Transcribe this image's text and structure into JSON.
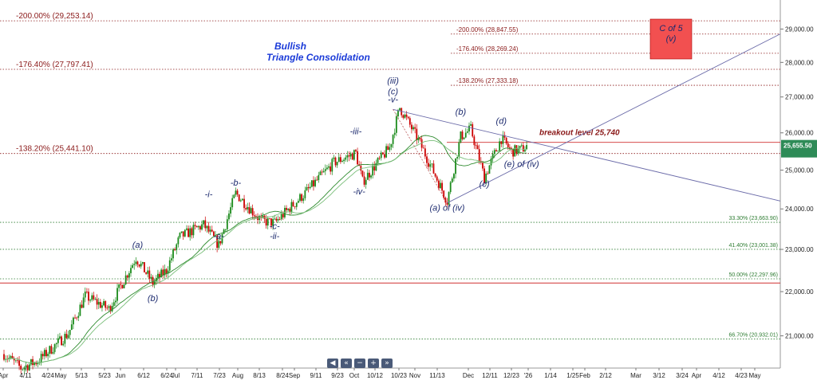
{
  "chart_data": {
    "type": "candlestick",
    "yscale": "log",
    "ylim": [
      20300,
      29900
    ],
    "y_ticks": [
      {
        "label": "29,000.00",
        "value": 29000
      },
      {
        "label": "28,000.00",
        "value": 28000
      },
      {
        "label": "27,000.00",
        "value": 27000
      },
      {
        "label": "26,000.00",
        "value": 26000
      },
      {
        "label": "25,000.00",
        "value": 25000
      },
      {
        "label": "24,000.00",
        "value": 24000
      },
      {
        "label": "23,000.00",
        "value": 23000
      },
      {
        "label": "22,000.00",
        "value": 22000
      },
      {
        "label": "21,000.00",
        "value": 21000
      }
    ],
    "last_price_label": "25,655.50",
    "last_price": 25655.5,
    "x_ticks": [
      "Apr",
      "4/11",
      "4/24",
      "May",
      "5/13",
      "5/23",
      "Jun",
      "6/12",
      "6/24",
      "Jul",
      "7/11",
      "7/23",
      "Aug",
      "8/13",
      "8/24",
      "Sep",
      "9/11",
      "9/23",
      "Oct",
      "10/12",
      "10/23",
      "Nov",
      "11/13",
      "Dec",
      "12/11",
      "12/23",
      "'26",
      "1/14",
      "1/25",
      "Feb",
      "2/12",
      "Mar",
      "3/12",
      "3/24",
      "Apr",
      "4/12",
      "4/23",
      "May"
    ],
    "x_tick_positions_note": "",
    "extension_levels_left": [
      {
        "label": "-200.00% (29,253.14)",
        "value": 29253.14
      },
      {
        "label": "-176.40% (27,797.41)",
        "value": 27797.41
      },
      {
        "label": "-138.20% (25,441.10)",
        "value": 25441.1
      }
    ],
    "extension_levels_right": [
      {
        "label": "-200.00% (28,847.55)",
        "value": 28847.55
      },
      {
        "label": "-176.40% (28,269.24)",
        "value": 28269.24
      },
      {
        "label": "-138.20% (27,333.18)",
        "value": 27333.18
      }
    ],
    "retracement_levels": [
      {
        "label": "33.30% (23,663.90)",
        "value": 23663.9
      },
      {
        "label": "41.40% (23,001.38)",
        "value": 23001.38
      },
      {
        "label": "50.00% (22,297.96)",
        "value": 22297.96
      },
      {
        "label": "66.70% (20,932.01)",
        "value": 20932.01
      }
    ],
    "horizontal_line_red": 22200,
    "breakout": {
      "label": "breakout level 25,740",
      "value": 25740
    },
    "annotation_title": [
      "Bullish",
      "Triangle Consolidation"
    ],
    "target_box": {
      "line1": "C of 5",
      "line2": "(v)"
    },
    "wave_labels": [
      {
        "text": "(a)",
        "date_index": 79,
        "value": 23040,
        "pos": "above"
      },
      {
        "text": "-i-",
        "date_index": 121,
        "value": 24300,
        "pos": "above"
      },
      {
        "text": "-a-",
        "date_index": 127,
        "value": 23250,
        "pos": "below"
      },
      {
        "text": "-b-",
        "date_index": 137,
        "value": 24600,
        "pos": "above"
      },
      {
        "text": "-c-",
        "date_index": 160,
        "value": 23500,
        "pos": "below"
      },
      {
        "text": "-ii-",
        "date_index": 160,
        "value": 23250,
        "pos": "below"
      },
      {
        "text": "-iii-",
        "date_index": 208,
        "value": 25960,
        "pos": "above"
      },
      {
        "text": "-iv-",
        "date_index": 210,
        "value": 24370,
        "pos": "below"
      },
      {
        "text": "(iii)",
        "date_index": 230,
        "value": 27380,
        "pos": "above"
      },
      {
        "text": "(c)",
        "date_index": 230,
        "value": 27070,
        "pos": "above"
      },
      {
        "text": "-v-",
        "date_index": 230,
        "value": 26850,
        "pos": "above"
      },
      {
        "text": "(a) of (iv)",
        "date_index": 262,
        "value": 23950,
        "pos": "below"
      },
      {
        "text": "(b)",
        "date_index": 270,
        "value": 26500,
        "pos": "above"
      },
      {
        "text": "(c)",
        "date_index": 284,
        "value": 24560,
        "pos": "below"
      },
      {
        "text": "(d)",
        "date_index": 294,
        "value": 26250,
        "pos": "above"
      },
      {
        "text": "(e) of (iv)",
        "date_index": 306,
        "value": 25080,
        "pos": "below"
      },
      {
        "text": "(b)",
        "date_index": 88,
        "value": 21780,
        "pos": "below"
      }
    ]
  },
  "toolbar_icons": [
    "step-back-icon",
    "scroll-left-icon",
    "zoom-out-icon",
    "zoom-in-icon",
    "scroll-right-icon"
  ],
  "colors": {
    "up": "#1a8a1a",
    "down": "#cc0000",
    "ext_line": "#8b1a1a",
    "fib_line": "#2e7d32",
    "wave_text": "#1c2a6e",
    "trend_line": "#6a6aa8",
    "last_price_bg": "#2e8b57"
  }
}
